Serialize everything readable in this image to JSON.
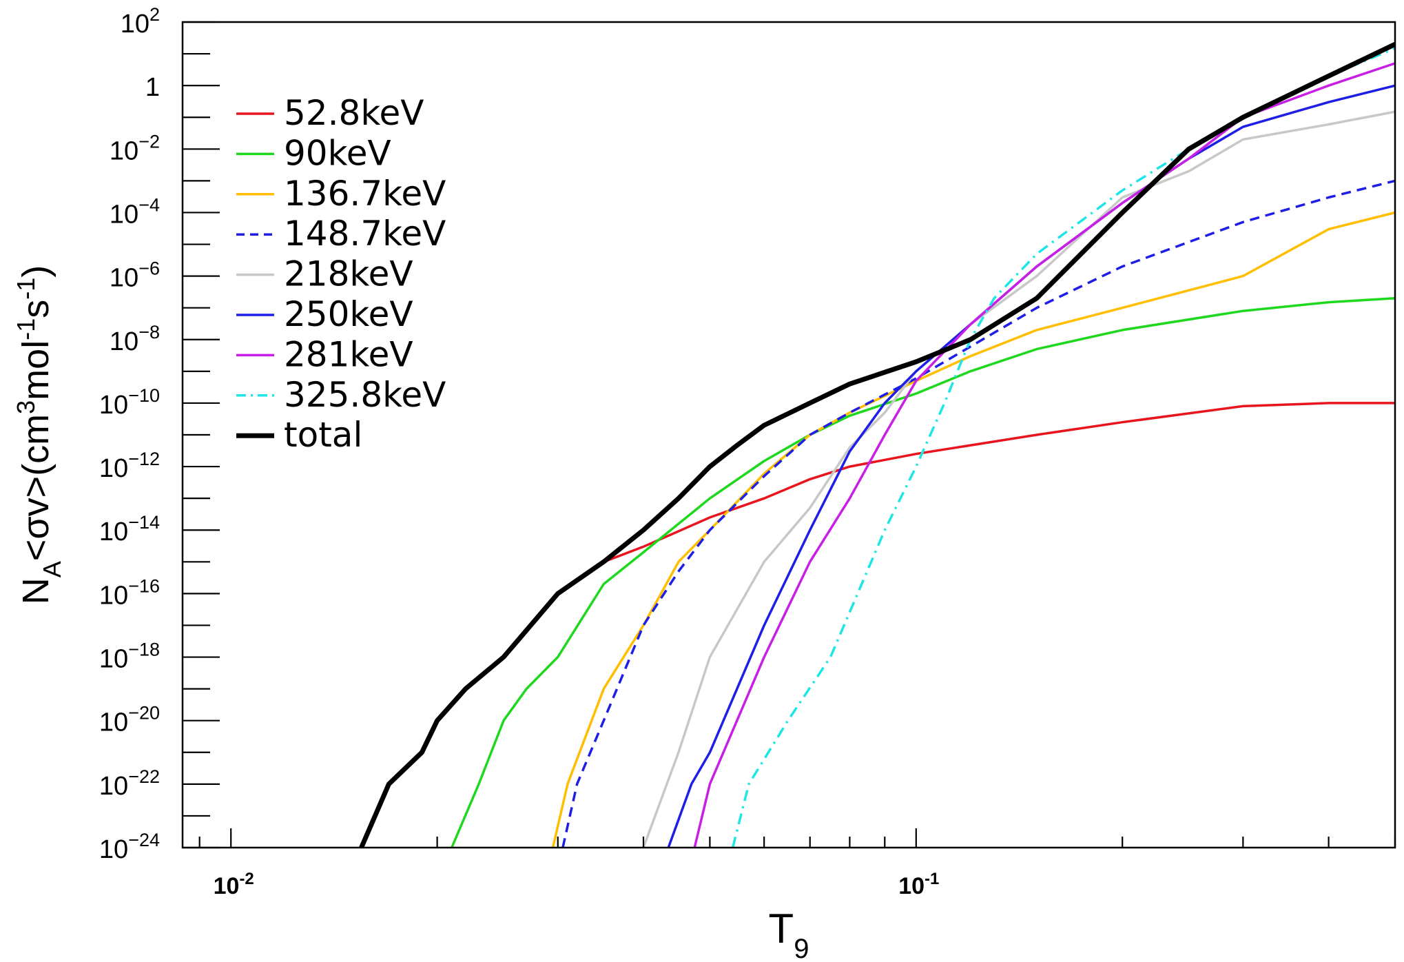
{
  "chart_data": {
    "type": "line",
    "x_scale": "log",
    "y_scale": "log",
    "xlim": [
      0.0085,
      0.5
    ],
    "ylim": [
      1e-24,
      100
    ],
    "xlabel": {
      "main": "T",
      "sub": "9"
    },
    "ylabel": {
      "parts": [
        {
          "t": "N",
          "s": "n"
        },
        {
          "t": "A",
          "s": "sub"
        },
        {
          "t": "<σv>(cm",
          "s": "n"
        },
        {
          "t": "3",
          "s": "sup"
        },
        {
          "t": "mol",
          "s": "n"
        },
        {
          "t": "-1",
          "s": "sup"
        },
        {
          "t": "s",
          "s": "n"
        },
        {
          "t": "-1",
          "s": "sup"
        },
        {
          "t": ")",
          "s": "n"
        }
      ]
    },
    "x_ticks": [
      {
        "value": 0.01,
        "base": "10",
        "exp": "-2"
      },
      {
        "value": 0.1,
        "base": "10",
        "exp": "-1"
      }
    ],
    "y_ticks": [
      {
        "value": 100,
        "base": "10",
        "exp": "2"
      },
      {
        "value": 1,
        "base": "1",
        "exp": ""
      },
      {
        "value": 0.01,
        "base": "10",
        "exp": "−2"
      },
      {
        "value": 0.0001,
        "base": "10",
        "exp": "−4"
      },
      {
        "value": 1e-06,
        "base": "10",
        "exp": "−6"
      },
      {
        "value": 1e-08,
        "base": "10",
        "exp": "−8"
      },
      {
        "value": 1e-10,
        "base": "10",
        "exp": "−10"
      },
      {
        "value": 1e-12,
        "base": "10",
        "exp": "−12"
      },
      {
        "value": 1e-14,
        "base": "10",
        "exp": "−14"
      },
      {
        "value": 1e-16,
        "base": "10",
        "exp": "−16"
      },
      {
        "value": 1e-18,
        "base": "10",
        "exp": "−18"
      },
      {
        "value": 1e-20,
        "base": "10",
        "exp": "−20"
      },
      {
        "value": 1e-22,
        "base": "10",
        "exp": "−22"
      },
      {
        "value": 1e-24,
        "base": "10",
        "exp": "−24"
      }
    ],
    "legend_position": "top-left",
    "grid": false,
    "series": [
      {
        "name": "52.8keV",
        "color": "#e8141e",
        "dash": "solid",
        "points": [
          [
            0.03,
            1e-16
          ],
          [
            0.035,
            1e-15
          ],
          [
            0.04,
            3e-15
          ],
          [
            0.05,
            2.5e-14
          ],
          [
            0.06,
            1e-13
          ],
          [
            0.07,
            4e-13
          ],
          [
            0.08,
            1e-12
          ],
          [
            0.1,
            2.5e-12
          ],
          [
            0.15,
            1e-11
          ],
          [
            0.2,
            2.5e-11
          ],
          [
            0.3,
            8e-11
          ],
          [
            0.4,
            1e-10
          ],
          [
            0.5,
            1e-10
          ]
        ]
      },
      {
        "name": "90keV",
        "color": "#1ed81e",
        "dash": "solid",
        "points": [
          [
            0.021,
            1e-24
          ],
          [
            0.023,
            1e-22
          ],
          [
            0.025,
            1e-20
          ],
          [
            0.027,
            1e-19
          ],
          [
            0.03,
            1e-18
          ],
          [
            0.035,
            2e-16
          ],
          [
            0.04,
            2e-15
          ],
          [
            0.05,
            1e-13
          ],
          [
            0.06,
            1.5e-12
          ],
          [
            0.07,
            1e-11
          ],
          [
            0.08,
            4e-11
          ],
          [
            0.1,
            2e-10
          ],
          [
            0.12,
            1e-09
          ],
          [
            0.15,
            5e-09
          ],
          [
            0.2,
            2e-08
          ],
          [
            0.3,
            8e-08
          ],
          [
            0.4,
            1.5e-07
          ],
          [
            0.5,
            2e-07
          ]
        ]
      },
      {
        "name": "136.7keV",
        "color": "#ffbe00",
        "dash": "solid",
        "points": [
          [
            0.0295,
            1e-24
          ],
          [
            0.031,
            1e-22
          ],
          [
            0.035,
            1e-19
          ],
          [
            0.04,
            1e-17
          ],
          [
            0.045,
            1e-15
          ],
          [
            0.05,
            1e-14
          ],
          [
            0.06,
            6e-13
          ],
          [
            0.07,
            1e-11
          ],
          [
            0.08,
            5e-11
          ],
          [
            0.1,
            5e-10
          ],
          [
            0.12,
            3e-09
          ],
          [
            0.15,
            2e-08
          ],
          [
            0.2,
            1e-07
          ],
          [
            0.3,
            1e-06
          ],
          [
            0.4,
            3e-05
          ],
          [
            0.5,
            0.0001
          ]
        ]
      },
      {
        "name": "148.7keV",
        "color": "#1e1ee6",
        "dash": "dash",
        "points": [
          [
            0.0305,
            1e-24
          ],
          [
            0.032,
            1e-22
          ],
          [
            0.035,
            1e-20
          ],
          [
            0.04,
            1e-17
          ],
          [
            0.045,
            5e-16
          ],
          [
            0.05,
            1e-14
          ],
          [
            0.06,
            5e-13
          ],
          [
            0.07,
            1e-11
          ],
          [
            0.08,
            5e-11
          ],
          [
            0.1,
            6e-10
          ],
          [
            0.12,
            6e-09
          ],
          [
            0.15,
            1e-07
          ],
          [
            0.2,
            2e-06
          ],
          [
            0.3,
            5e-05
          ],
          [
            0.4,
            0.0003
          ],
          [
            0.5,
            0.001
          ]
        ]
      },
      {
        "name": "218keV",
        "color": "#c8c8c8",
        "dash": "solid",
        "points": [
          [
            0.04,
            1e-24
          ],
          [
            0.045,
            1e-21
          ],
          [
            0.05,
            1e-18
          ],
          [
            0.06,
            1e-15
          ],
          [
            0.07,
            5e-14
          ],
          [
            0.08,
            4e-12
          ],
          [
            0.09,
            5e-11
          ],
          [
            0.1,
            1e-09
          ],
          [
            0.12,
            3e-08
          ],
          [
            0.15,
            1e-06
          ],
          [
            0.2,
            0.0003
          ],
          [
            0.25,
            0.002
          ],
          [
            0.3,
            0.02
          ],
          [
            0.4,
            0.06
          ],
          [
            0.5,
            0.15
          ]
        ]
      },
      {
        "name": "250keV",
        "color": "#1e1ee6",
        "dash": "solid",
        "points": [
          [
            0.0435,
            1e-24
          ],
          [
            0.047,
            1e-22
          ],
          [
            0.05,
            1e-21
          ],
          [
            0.06,
            1e-17
          ],
          [
            0.07,
            1e-14
          ],
          [
            0.08,
            3e-12
          ],
          [
            0.09,
            1e-10
          ],
          [
            0.1,
            1e-09
          ],
          [
            0.12,
            3e-08
          ],
          [
            0.15,
            2e-06
          ],
          [
            0.2,
            0.0002
          ],
          [
            0.25,
            0.005
          ],
          [
            0.3,
            0.05
          ],
          [
            0.4,
            0.3
          ],
          [
            0.5,
            1
          ]
        ]
      },
      {
        "name": "281keV",
        "color": "#c81ee6",
        "dash": "solid",
        "points": [
          [
            0.0475,
            1e-24
          ],
          [
            0.05,
            1e-22
          ],
          [
            0.06,
            1e-18
          ],
          [
            0.07,
            1e-15
          ],
          [
            0.08,
            1e-13
          ],
          [
            0.09,
            1e-11
          ],
          [
            0.1,
            5e-10
          ],
          [
            0.12,
            3e-08
          ],
          [
            0.15,
            2e-06
          ],
          [
            0.2,
            0.0002
          ],
          [
            0.25,
            0.005
          ],
          [
            0.3,
            0.1
          ],
          [
            0.4,
            1
          ],
          [
            0.5,
            5
          ]
        ]
      },
      {
        "name": "325.8keV",
        "color": "#1ee6e6",
        "dash": "dashdot",
        "points": [
          [
            0.054,
            1e-24
          ],
          [
            0.057,
            1e-22
          ],
          [
            0.065,
            1e-20
          ],
          [
            0.075,
            1e-18
          ],
          [
            0.09,
            1e-14
          ],
          [
            0.1,
            1e-12
          ],
          [
            0.11,
            1e-10
          ],
          [
            0.12,
            1e-08
          ],
          [
            0.13,
            2e-07
          ],
          [
            0.15,
            5e-06
          ],
          [
            0.2,
            0.0005
          ],
          [
            0.25,
            0.01
          ],
          [
            0.3,
            0.1
          ],
          [
            0.4,
            2
          ],
          [
            0.5,
            15
          ]
        ]
      },
      {
        "name": "total",
        "color": "#000000",
        "dash": "solid",
        "width": "thick",
        "points": [
          [
            0.0155,
            1e-24
          ],
          [
            0.017,
            1e-22
          ],
          [
            0.019,
            1e-21
          ],
          [
            0.02,
            1e-20
          ],
          [
            0.022,
            1e-19
          ],
          [
            0.025,
            1e-18
          ],
          [
            0.03,
            1e-16
          ],
          [
            0.035,
            1e-15
          ],
          [
            0.04,
            1e-14
          ],
          [
            0.045,
            1e-13
          ],
          [
            0.05,
            1e-12
          ],
          [
            0.055,
            5e-12
          ],
          [
            0.06,
            2e-11
          ],
          [
            0.07,
            1e-10
          ],
          [
            0.08,
            4e-10
          ],
          [
            0.1,
            2e-09
          ],
          [
            0.12,
            1e-08
          ],
          [
            0.15,
            2e-07
          ],
          [
            0.2,
            0.0001
          ],
          [
            0.25,
            0.01
          ],
          [
            0.3,
            0.1
          ],
          [
            0.4,
            2
          ],
          [
            0.5,
            20
          ]
        ]
      }
    ]
  }
}
